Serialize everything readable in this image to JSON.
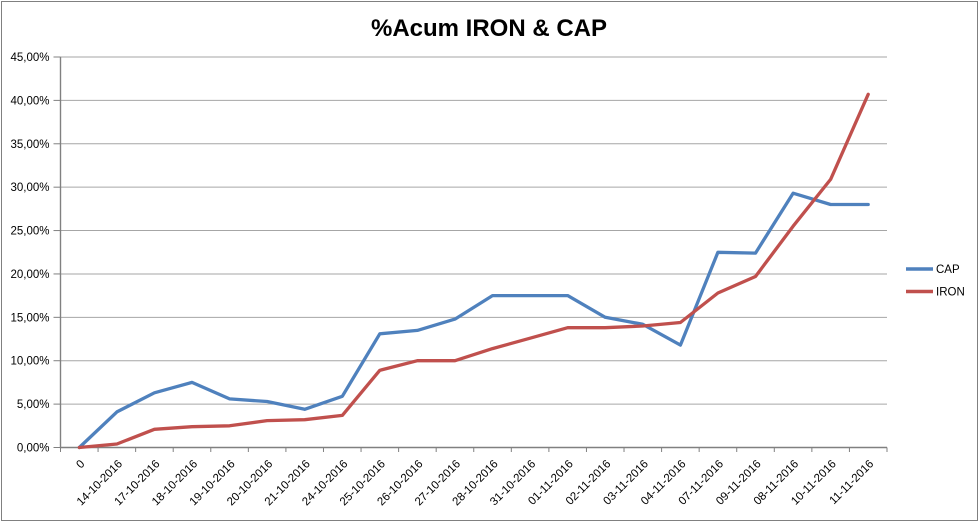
{
  "chart_data": {
    "type": "line",
    "title": "%Acum IRON & CAP",
    "categories": [
      "0",
      "14-10-2016",
      "17-10-2016",
      "18-10-2016",
      "19-10-2016",
      "20-10-2016",
      "21-10-2016",
      "24-10-2016",
      "25-10-2016",
      "26-10-2016",
      "27-10-2016",
      "28-10-2016",
      "31-10-2016",
      "01-11-2016",
      "02-11-2016",
      "03-11-2016",
      "04-11-2016",
      "07-11-2016",
      "09-11-2016",
      "08-11-2016",
      "10-11-2016",
      "11-11-2016"
    ],
    "series": [
      {
        "name": "CAP",
        "color": "#4F81BD",
        "values": [
          0,
          4.1,
          6.3,
          7.5,
          5.6,
          5.3,
          4.4,
          5.9,
          13.1,
          13.5,
          14.8,
          17.5,
          17.5,
          17.5,
          15.0,
          14.2,
          11.8,
          22.5,
          22.4,
          29.3,
          28.0,
          28.0
        ]
      },
      {
        "name": "IRON",
        "color": "#C0504D",
        "values": [
          0,
          0.4,
          2.1,
          2.4,
          2.5,
          3.1,
          3.2,
          3.7,
          8.9,
          10.0,
          10.0,
          11.4,
          12.6,
          13.8,
          13.8,
          14.0,
          14.4,
          17.8,
          19.7,
          25.5,
          30.9,
          40.7
        ]
      }
    ],
    "y_axis": {
      "min": 0,
      "max": 45,
      "step": 5,
      "unit": "%",
      "tick_labels": [
        "45,00%",
        "40,00%",
        "35,00%",
        "30,00%",
        "25,00%",
        "20,00%",
        "15,00%",
        "10,00%",
        "5,00%",
        "0,00%"
      ]
    },
    "x_axis": {
      "tick_label_rotation_deg": -45
    },
    "grid": true,
    "legend": {
      "position": "right",
      "entries": [
        "CAP",
        "IRON"
      ]
    },
    "colors": {
      "background": "#FFFFFF",
      "border": "#808080",
      "gridline": "#A6A6A6",
      "axis": "#808080",
      "text": "#000000"
    }
  }
}
